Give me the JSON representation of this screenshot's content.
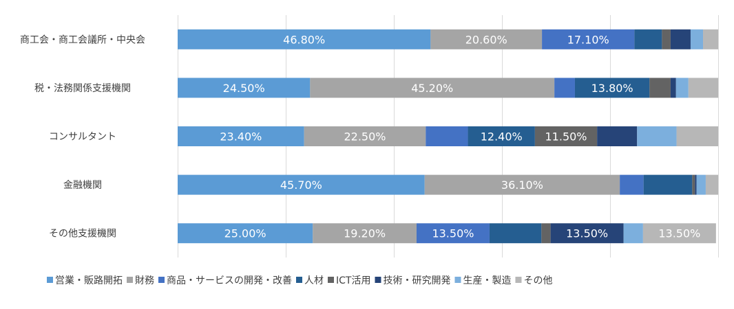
{
  "chart_data": {
    "type": "bar",
    "orientation": "horizontal",
    "stacked": true,
    "normalized": true,
    "xlim": [
      0,
      100
    ],
    "grid": "vertical gridlines",
    "legend_position": "bottom",
    "categories": [
      "商工会・商工会議所・中央会",
      "税・法務関係支援機関",
      "コンサルタント",
      "金融機関",
      "その他支援機関"
    ],
    "series": [
      {
        "name": "営業・販路開拓",
        "color": "#5B9BD5",
        "values": [
          46.8,
          24.5,
          23.4,
          45.7,
          25.0
        ],
        "labels": [
          "46.80%",
          "24.50%",
          "23.40%",
          "45.70%",
          "25.00%"
        ]
      },
      {
        "name": "財務",
        "color": "#A5A5A5",
        "values": [
          20.6,
          45.2,
          22.5,
          36.1,
          19.2
        ],
        "labels": [
          "20.60%",
          "45.20%",
          "22.50%",
          "36.10%",
          "19.20%"
        ]
      },
      {
        "name": "商品・サービスの開発・改善",
        "color": "#4472C4",
        "values": [
          17.1,
          3.8,
          7.8,
          4.4,
          13.5
        ],
        "labels": [
          "17.10%",
          "",
          "",
          "",
          "13.50%"
        ]
      },
      {
        "name": "人材",
        "color": "#255E91",
        "values": [
          5.1,
          13.8,
          12.4,
          9.0,
          9.6
        ],
        "labels": [
          "",
          "13.80%",
          "12.40%",
          "",
          ""
        ]
      },
      {
        "name": "ICT活用",
        "color": "#636363",
        "values": [
          1.6,
          3.9,
          11.5,
          0.5,
          1.7
        ],
        "labels": [
          "",
          "",
          "11.50%",
          "",
          ""
        ]
      },
      {
        "name": "技術・研究開発",
        "color": "#264478",
        "values": [
          3.7,
          1.0,
          7.4,
          0.3,
          13.5
        ],
        "labels": [
          "",
          "",
          "",
          "",
          "13.50%"
        ]
      },
      {
        "name": "生産・製造",
        "color": "#7CAFDD",
        "values": [
          2.3,
          2.3,
          7.3,
          1.7,
          3.6
        ],
        "labels": [
          "",
          "",
          "",
          "",
          ""
        ]
      },
      {
        "name": "その他",
        "color": "#B7B7B7",
        "values": [
          2.8,
          5.5,
          7.7,
          2.3,
          13.5
        ],
        "labels": [
          "",
          "",
          "",
          "",
          "13.50%"
        ]
      }
    ]
  }
}
